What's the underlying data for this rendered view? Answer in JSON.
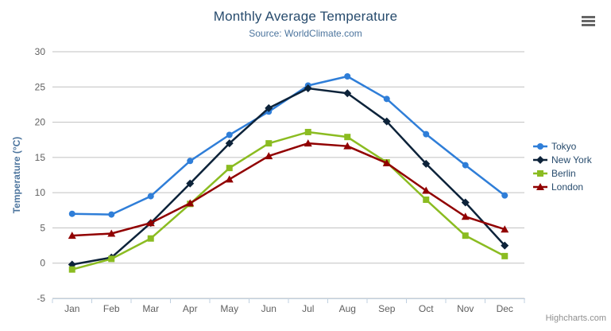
{
  "chart_data": {
    "type": "line",
    "title": "Monthly Average Temperature",
    "subtitle": "Source: WorldClimate.com",
    "xlabel": "",
    "ylabel": "Temperature (°C)",
    "categories": [
      "Jan",
      "Feb",
      "Mar",
      "Apr",
      "May",
      "Jun",
      "Jul",
      "Aug",
      "Sep",
      "Oct",
      "Nov",
      "Dec"
    ],
    "ylim": [
      -5,
      30
    ],
    "ytick_interval": 5,
    "grid": true,
    "legend_position": "right-middle-vertical",
    "series": [
      {
        "name": "Tokyo",
        "marker": "circle",
        "color": "#2f7ed8",
        "values": [
          7.0,
          6.9,
          9.5,
          14.5,
          18.2,
          21.5,
          25.2,
          26.5,
          23.3,
          18.3,
          13.9,
          9.6
        ]
      },
      {
        "name": "New York",
        "marker": "diamond",
        "color": "#0d233a",
        "values": [
          -0.2,
          0.8,
          5.7,
          11.3,
          17.0,
          22.0,
          24.8,
          24.1,
          20.1,
          14.1,
          8.6,
          2.5
        ]
      },
      {
        "name": "Berlin",
        "marker": "square",
        "color": "#8bbc21",
        "values": [
          -0.9,
          0.6,
          3.5,
          8.4,
          13.5,
          17.0,
          18.6,
          17.9,
          14.3,
          9.0,
          3.9,
          1.0
        ]
      },
      {
        "name": "London",
        "marker": "triangle",
        "color": "#910000",
        "values": [
          3.9,
          4.2,
          5.7,
          8.5,
          11.9,
          15.2,
          17.0,
          16.6,
          14.2,
          10.3,
          6.6,
          4.8
        ]
      }
    ],
    "style_colors": {
      "title": "#274b6d",
      "subtitle": "#4d759e",
      "axis_title": "#4d759e",
      "tick_label": "#606060",
      "grid_line": "#c0c0c0",
      "axis_line": "#c0d0e0",
      "legend_text": "#274b6d",
      "menu_icon": "#666666",
      "credits_text": "#909090"
    }
  },
  "credits": {
    "label": "Highcharts.com"
  },
  "icons": {
    "context_menu": "hamburger-menu"
  }
}
